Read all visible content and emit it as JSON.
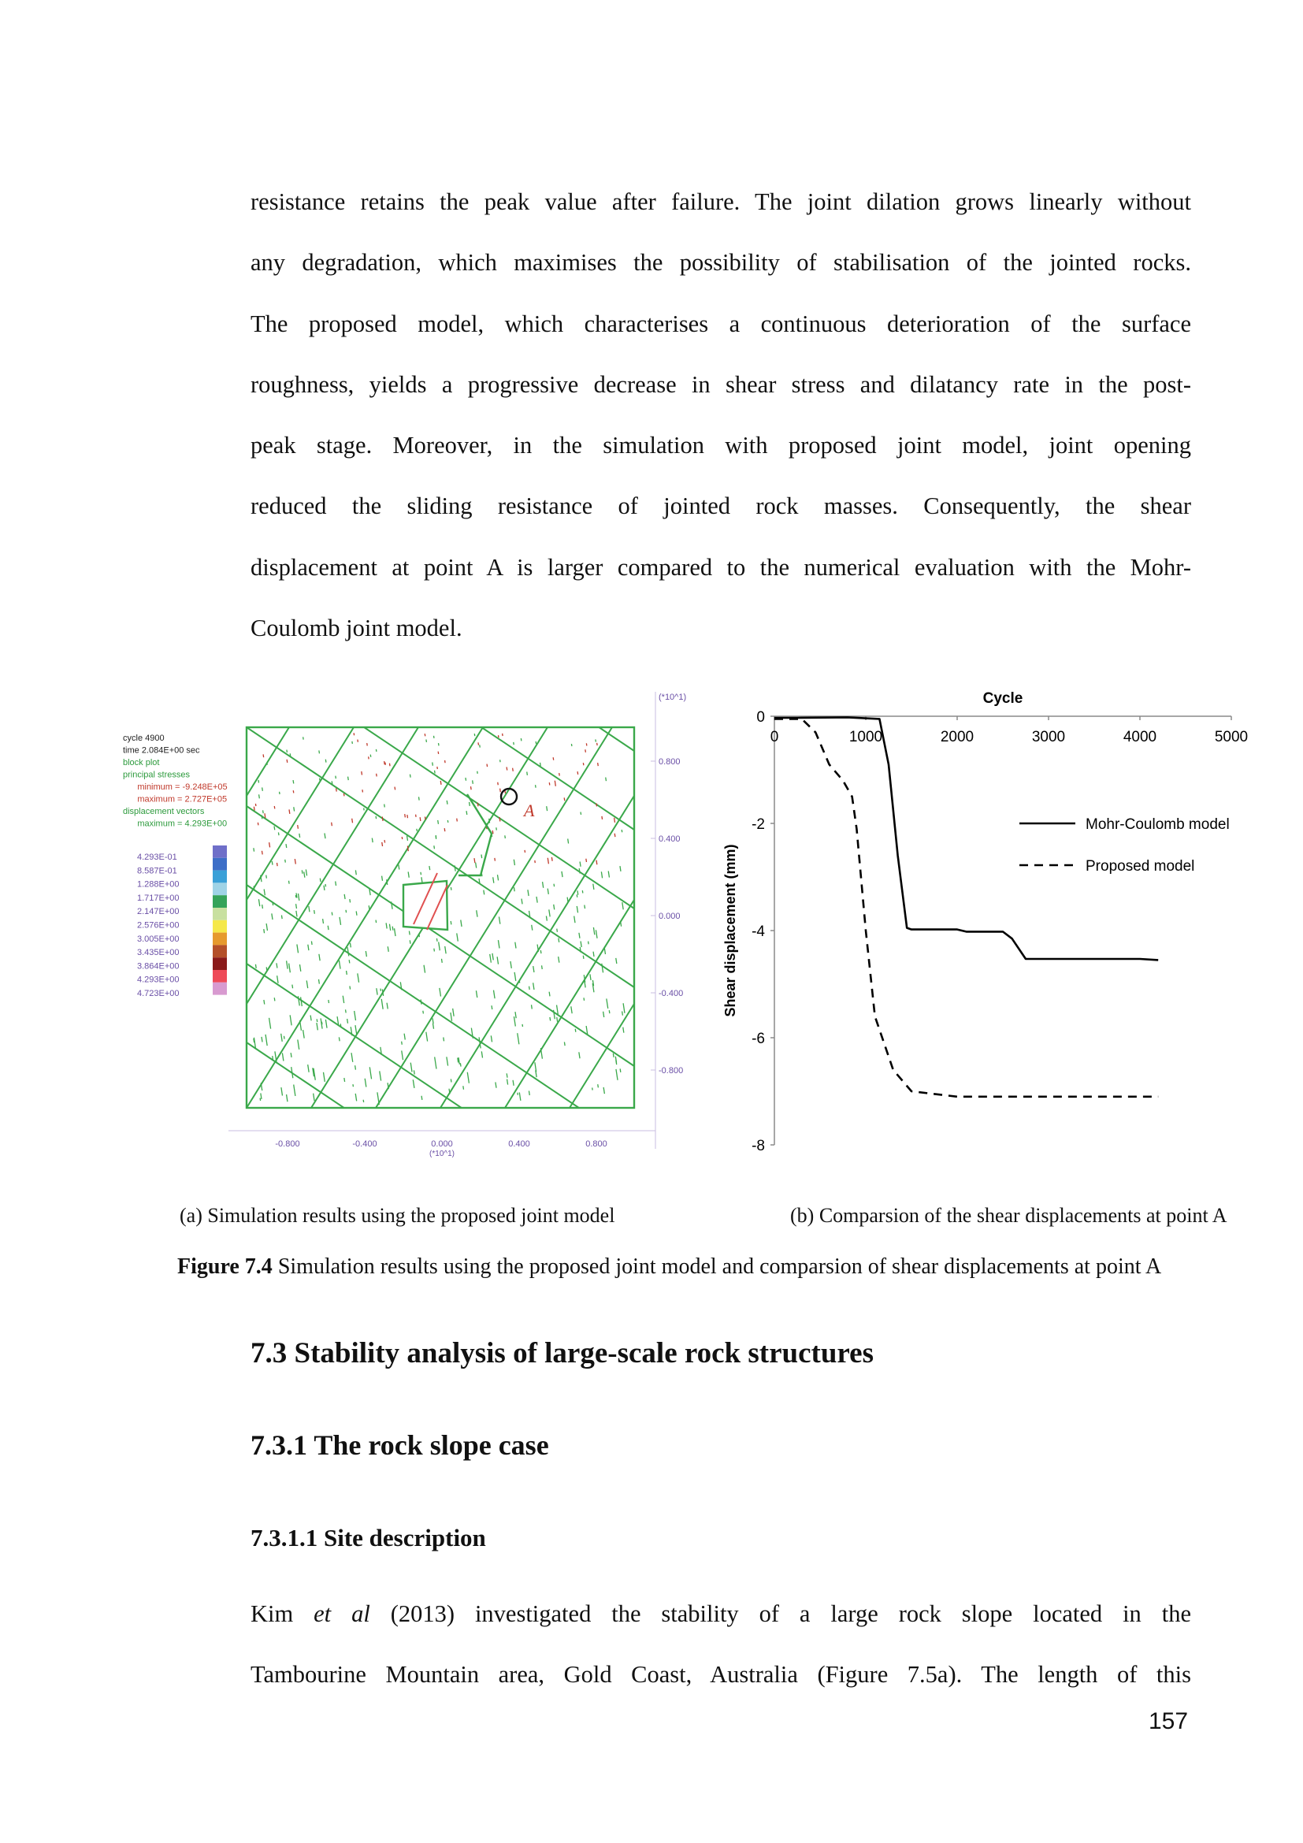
{
  "body_top": [
    "resistance retains the peak value after failure. The joint dilation grows linearly without",
    "any degradation, which maximises the possibility of stabilisation of the jointed rocks.",
    "The proposed model, which characterises a continuous deterioration of the surface",
    "roughness, yields a progressive decrease in shear stress and dilatancy rate in the post-",
    "peak stage. Moreover, in the simulation with proposed joint model, joint opening",
    "reduced the sliding resistance of jointed rock masses. Consequently, the shear",
    "displacement at point A is larger compared to the numerical evaluation with the Mohr-",
    "Coulomb joint model."
  ],
  "sim_panel": {
    "info": {
      "cycle_label": "cycle",
      "cycle_value": "4900",
      "time_label": "time",
      "time_value": "2.084E+00 sec",
      "block_plot": "block plot",
      "principal_stresses": "principal stresses",
      "minimum": "minimum = -9.248E+05",
      "maximum": "maximum = 2.727E+05",
      "displacement_vectors": "displacement vectors",
      "disp_maximum": "maximum = 4.293E+00"
    },
    "legend_values": [
      "4.293E-01",
      "8.587E-01",
      "1.288E+00",
      "1.717E+00",
      "2.147E+00",
      "2.576E+00",
      "3.005E+00",
      "3.435E+00",
      "3.864E+00",
      "4.293E+00",
      "4.723E+00"
    ],
    "legend_colors": [
      "#6f6fc9",
      "#3d6ec7",
      "#3aa0d8",
      "#9fd3e6",
      "#35a35a",
      "#c8e0a0",
      "#f5e84a",
      "#e69a2e",
      "#b4502a",
      "#8a1a1a",
      "#ee4a58",
      "#d89ad0"
    ],
    "right_axis": [
      "(*10^1)",
      "0.800",
      "0.400",
      "0.000",
      "-0.400",
      "-0.800"
    ],
    "bottom_axis": [
      "-0.800",
      "-0.400",
      "0.000",
      "0.400",
      "0.800"
    ],
    "bottom_unit": "(*10^1)",
    "point_label": "A"
  },
  "chart_data": {
    "type": "line",
    "title": "Cycle",
    "ylabel": "Shear displacement (mm)",
    "xlim": [
      0,
      5000
    ],
    "ylim": [
      -8,
      0
    ],
    "x_ticks": [
      0,
      1000,
      2000,
      3000,
      4000,
      5000
    ],
    "y_ticks": [
      0,
      -2,
      -4,
      -6,
      -8
    ],
    "legend_position": "right",
    "series": [
      {
        "name": "Mohr-Coulomb model",
        "style": "solid",
        "points": [
          [
            0,
            -0.03
          ],
          [
            250,
            -0.03
          ],
          [
            800,
            -0.02
          ],
          [
            1150,
            -0.05
          ],
          [
            1250,
            -0.9
          ],
          [
            1350,
            -2.6
          ],
          [
            1450,
            -3.95
          ],
          [
            1500,
            -3.98
          ],
          [
            2000,
            -3.98
          ],
          [
            2100,
            -4.02
          ],
          [
            2500,
            -4.02
          ],
          [
            2600,
            -4.15
          ],
          [
            2750,
            -4.53
          ],
          [
            3000,
            -4.53
          ],
          [
            4000,
            -4.53
          ],
          [
            4200,
            -4.55
          ]
        ]
      },
      {
        "name": "Proposed model",
        "style": "dashed",
        "points": [
          [
            0,
            -0.05
          ],
          [
            300,
            -0.05
          ],
          [
            450,
            -0.3
          ],
          [
            600,
            -0.9
          ],
          [
            750,
            -1.2
          ],
          [
            850,
            -1.5
          ],
          [
            900,
            -2.1
          ],
          [
            1000,
            -4.0
          ],
          [
            1100,
            -5.6
          ],
          [
            1300,
            -6.6
          ],
          [
            1500,
            -7.0
          ],
          [
            2000,
            -7.1
          ],
          [
            3000,
            -7.1
          ],
          [
            4000,
            -7.1
          ],
          [
            4200,
            -7.1
          ]
        ]
      }
    ]
  },
  "captions": {
    "sub_a": "(a) Simulation results using the proposed joint model",
    "sub_b": "(b) Comparsion of the shear displacements at point A",
    "figure_label": "Figure 7.4",
    "figure_text": " Simulation results using the proposed joint model and comparsion of shear displacements at point A"
  },
  "section": "7.3 Stability analysis of large-scale rock structures",
  "subsection": "7.3.1 The rock slope case",
  "subsubsection": "7.3.1.1 Site description",
  "body_bottom": {
    "l1_a": "Kim ",
    "l1_italic": "et al",
    "l1_b": " (2013) investigated the stability of a large rock slope located in the",
    "l2": "Tambourine Mountain area, Gold Coast, Australia (Figure 7.5a). The length of this"
  },
  "page_number": "157"
}
